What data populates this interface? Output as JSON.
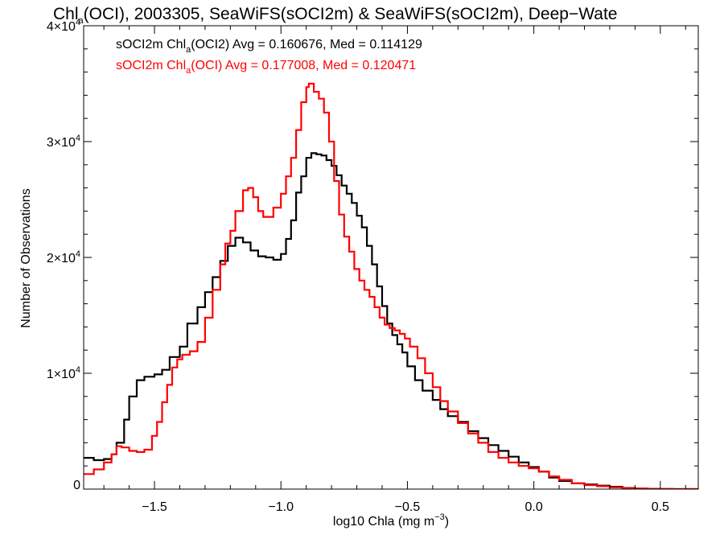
{
  "chart_data": {
    "type": "line",
    "title": {
      "pre": "Chl",
      "sub": "a",
      "post": "(OCI), 2003305, SeaWiFS(sOCI2m) & SeaWiFS(sOCI2m), Deep−Wate"
    },
    "xlabel": {
      "pre": "log10 Chla (mg m",
      "sup": "−3",
      "post": ")"
    },
    "ylabel": "Number of Observations",
    "xlim": [
      -1.78,
      0.65
    ],
    "ylim": [
      0,
      40000
    ],
    "x_ticks": [
      {
        "value": -1.5,
        "label": "−1.5"
      },
      {
        "value": -1.0,
        "label": "−1.0"
      },
      {
        "value": -0.5,
        "label": "−0.5"
      },
      {
        "value": 0.0,
        "label": "0.0"
      },
      {
        "value": 0.5,
        "label": "0.5"
      }
    ],
    "y_ticks": [
      {
        "value": 0,
        "mant": "0",
        "exp": ""
      },
      {
        "value": 10000,
        "mant": "1×10",
        "exp": "4"
      },
      {
        "value": 20000,
        "mant": "2×10",
        "exp": "4"
      },
      {
        "value": 30000,
        "mant": "3×10",
        "exp": "4"
      },
      {
        "value": 40000,
        "mant": "4×10",
        "exp": "4"
      }
    ],
    "legend_placement": "top-left",
    "series": [
      {
        "legend": {
          "pre": "sOCI2m Chl",
          "sub": "a",
          "post": "(OCI2) Avg = 0.160676, Med = 0.114129"
        },
        "color": "#000000",
        "points": [
          [
            -1.78,
            2700
          ],
          [
            -1.74,
            2500
          ],
          [
            -1.7,
            2600
          ],
          [
            -1.67,
            3000
          ],
          [
            -1.65,
            4000
          ],
          [
            -1.62,
            6000
          ],
          [
            -1.6,
            8000
          ],
          [
            -1.57,
            9400
          ],
          [
            -1.54,
            9700
          ],
          [
            -1.5,
            9900
          ],
          [
            -1.47,
            10300
          ],
          [
            -1.44,
            11400
          ],
          [
            -1.4,
            12300
          ],
          [
            -1.37,
            14300
          ],
          [
            -1.33,
            15700
          ],
          [
            -1.3,
            17000
          ],
          [
            -1.27,
            18300
          ],
          [
            -1.24,
            19700
          ],
          [
            -1.21,
            21000
          ],
          [
            -1.18,
            21700
          ],
          [
            -1.15,
            21300
          ],
          [
            -1.12,
            20600
          ],
          [
            -1.09,
            20100
          ],
          [
            -1.06,
            20000
          ],
          [
            -1.03,
            19800
          ],
          [
            -1.0,
            20300
          ],
          [
            -0.98,
            21600
          ],
          [
            -0.96,
            23200
          ],
          [
            -0.94,
            25600
          ],
          [
            -0.92,
            27000
          ],
          [
            -0.9,
            28600
          ],
          [
            -0.88,
            29000
          ],
          [
            -0.86,
            28900
          ],
          [
            -0.84,
            28800
          ],
          [
            -0.82,
            28400
          ],
          [
            -0.8,
            27900
          ],
          [
            -0.78,
            27100
          ],
          [
            -0.76,
            26200
          ],
          [
            -0.74,
            25500
          ],
          [
            -0.72,
            24700
          ],
          [
            -0.7,
            23600
          ],
          [
            -0.68,
            22600
          ],
          [
            -0.66,
            21000
          ],
          [
            -0.64,
            19400
          ],
          [
            -0.62,
            17500
          ],
          [
            -0.6,
            15800
          ],
          [
            -0.58,
            14300
          ],
          [
            -0.56,
            13300
          ],
          [
            -0.54,
            12500
          ],
          [
            -0.52,
            11800
          ],
          [
            -0.5,
            10600
          ],
          [
            -0.47,
            9400
          ],
          [
            -0.44,
            8500
          ],
          [
            -0.4,
            7700
          ],
          [
            -0.37,
            6900
          ],
          [
            -0.34,
            6300
          ],
          [
            -0.3,
            5800
          ],
          [
            -0.26,
            5000
          ],
          [
            -0.22,
            4400
          ],
          [
            -0.18,
            3800
          ],
          [
            -0.14,
            3300
          ],
          [
            -0.1,
            2800
          ],
          [
            -0.06,
            2300
          ],
          [
            -0.02,
            1900
          ],
          [
            0.02,
            1500
          ],
          [
            0.06,
            1000
          ],
          [
            0.1,
            700
          ],
          [
            0.15,
            500
          ],
          [
            0.2,
            400
          ],
          [
            0.25,
            300
          ],
          [
            0.3,
            200
          ],
          [
            0.35,
            100
          ],
          [
            0.4,
            50
          ],
          [
            0.45,
            20
          ],
          [
            0.5,
            10
          ],
          [
            0.55,
            0
          ],
          [
            0.65,
            0
          ]
        ]
      },
      {
        "legend": {
          "pre": "sOCI2m Chl",
          "sub": "a",
          "post": "(OCI) Avg = 0.177008, Med = 0.120471"
        },
        "color": "#ff0000",
        "points": [
          [
            -1.78,
            1300
          ],
          [
            -1.74,
            1700
          ],
          [
            -1.7,
            2300
          ],
          [
            -1.67,
            3000
          ],
          [
            -1.65,
            3700
          ],
          [
            -1.63,
            3600
          ],
          [
            -1.6,
            3300
          ],
          [
            -1.57,
            3200
          ],
          [
            -1.54,
            3400
          ],
          [
            -1.51,
            4600
          ],
          [
            -1.49,
            5800
          ],
          [
            -1.47,
            7500
          ],
          [
            -1.45,
            9000
          ],
          [
            -1.43,
            10500
          ],
          [
            -1.41,
            11200
          ],
          [
            -1.39,
            11600
          ],
          [
            -1.36,
            11900
          ],
          [
            -1.33,
            12700
          ],
          [
            -1.3,
            14800
          ],
          [
            -1.27,
            17200
          ],
          [
            -1.24,
            19400
          ],
          [
            -1.22,
            21200
          ],
          [
            -1.2,
            22300
          ],
          [
            -1.18,
            24000
          ],
          [
            -1.15,
            25800
          ],
          [
            -1.13,
            26000
          ],
          [
            -1.11,
            25200
          ],
          [
            -1.09,
            24000
          ],
          [
            -1.07,
            23500
          ],
          [
            -1.05,
            23500
          ],
          [
            -1.03,
            24300
          ],
          [
            -1.0,
            25500
          ],
          [
            -0.98,
            27000
          ],
          [
            -0.96,
            28600
          ],
          [
            -0.94,
            31000
          ],
          [
            -0.92,
            33400
          ],
          [
            -0.9,
            34700
          ],
          [
            -0.89,
            35000
          ],
          [
            -0.87,
            34300
          ],
          [
            -0.85,
            33700
          ],
          [
            -0.83,
            32500
          ],
          [
            -0.81,
            30000
          ],
          [
            -0.79,
            26600
          ],
          [
            -0.77,
            23700
          ],
          [
            -0.75,
            21800
          ],
          [
            -0.73,
            20500
          ],
          [
            -0.71,
            19000
          ],
          [
            -0.69,
            18000
          ],
          [
            -0.67,
            17200
          ],
          [
            -0.65,
            16600
          ],
          [
            -0.63,
            15700
          ],
          [
            -0.61,
            14800
          ],
          [
            -0.59,
            14200
          ],
          [
            -0.57,
            13900
          ],
          [
            -0.55,
            13700
          ],
          [
            -0.53,
            13400
          ],
          [
            -0.51,
            13000
          ],
          [
            -0.49,
            12300
          ],
          [
            -0.46,
            11300
          ],
          [
            -0.43,
            10000
          ],
          [
            -0.4,
            8800
          ],
          [
            -0.37,
            7600
          ],
          [
            -0.34,
            6700
          ],
          [
            -0.3,
            5700
          ],
          [
            -0.26,
            4800
          ],
          [
            -0.22,
            4000
          ],
          [
            -0.18,
            3200
          ],
          [
            -0.14,
            2700
          ],
          [
            -0.1,
            2300
          ],
          [
            -0.06,
            2000
          ],
          [
            -0.02,
            1800
          ],
          [
            0.02,
            1500
          ],
          [
            0.06,
            1100
          ],
          [
            0.1,
            800
          ],
          [
            0.15,
            500
          ],
          [
            0.2,
            350
          ],
          [
            0.25,
            250
          ],
          [
            0.3,
            150
          ],
          [
            0.35,
            80
          ],
          [
            0.4,
            40
          ],
          [
            0.45,
            20
          ],
          [
            0.5,
            10
          ],
          [
            0.55,
            0
          ],
          [
            0.65,
            0
          ]
        ]
      }
    ]
  }
}
